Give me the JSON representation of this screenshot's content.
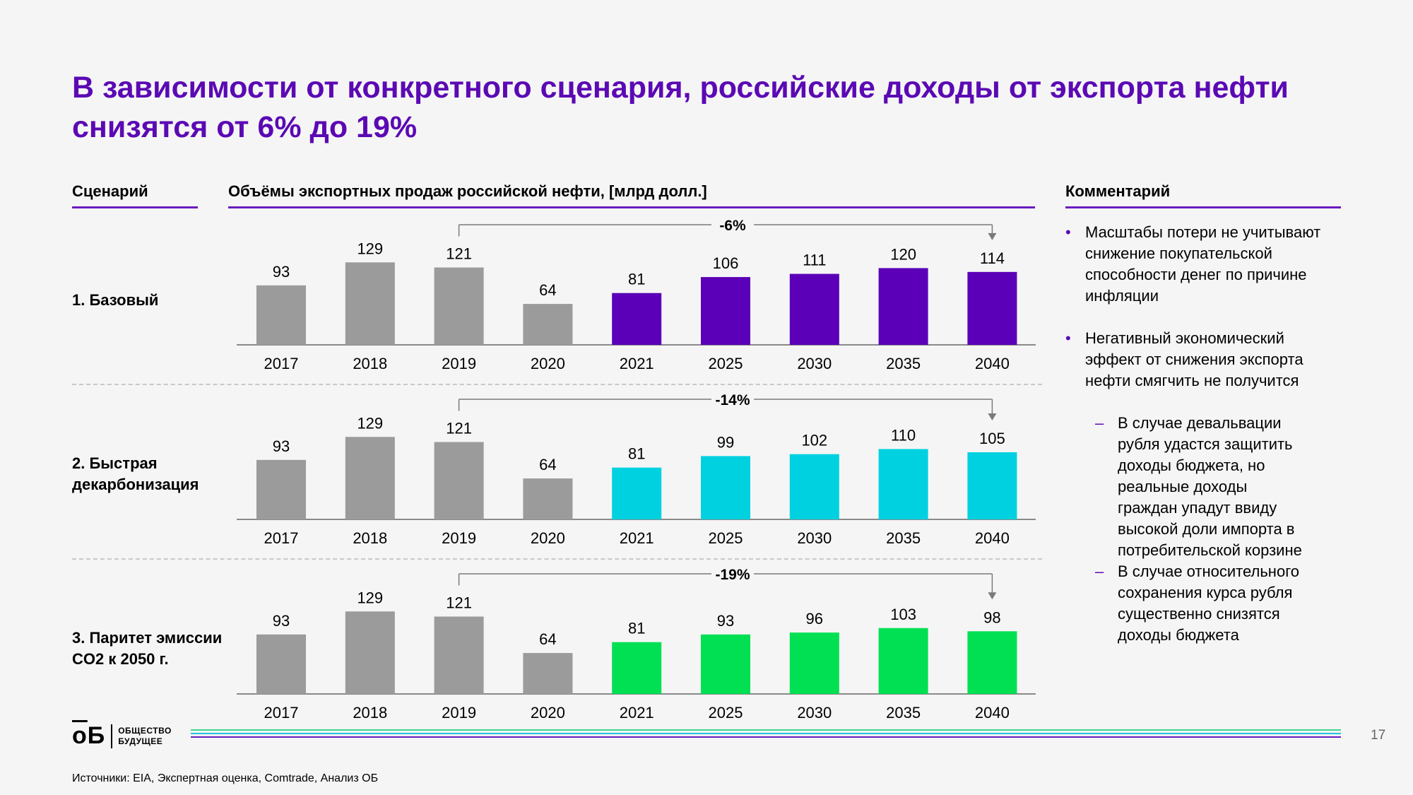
{
  "title_line1": "В зависимости от конкретного сценария, российские доходы от экспорта нефти",
  "title_line2": "снизятся от 6% до 19%",
  "headers": {
    "scenario": "Сценарий",
    "volumes": "Объёмы экспортных продаж российской нефти, [млрд долл.]",
    "comment": "Комментарий"
  },
  "scenarios": [
    {
      "line1": "1. Базовый",
      "line2": ""
    },
    {
      "line1": "2. Быстрая",
      "line2": "декарбонизация"
    },
    {
      "line1": "3. Паритет эмиссии",
      "line2": "CO2 к 2050 г."
    }
  ],
  "comments": {
    "b1": [
      "Масштабы потери не учитывают",
      "снижение покупательской",
      "способности денег по причине",
      "инфляции"
    ],
    "b2": [
      "Негативный экономический",
      "эффект от снижения экспорта",
      "нефти смягчить не получится"
    ],
    "s1": [
      "В случае девальвации",
      "рубля удастся защитить",
      "доходы бюджета, но",
      "реальные доходы",
      "граждан упадут ввиду",
      "высокой доли импорта в",
      "потребительской корзине"
    ],
    "s2": [
      "В случае относительного",
      "сохранения курса рубля",
      "существенно снизятся",
      "доходы бюджета"
    ],
    "bullet_symbol": "•",
    "dash_symbol": "–"
  },
  "logo": {
    "mark_o": "о",
    "mark_b": "Б",
    "line1": "ОБЩЕСТВО",
    "line2": "БУДУЩЕЕ"
  },
  "page_number": "17",
  "sources": "Источники: EIA, Экспертная оценка, Comtrade, Анализ ОБ",
  "colors": {
    "title": "#5b09b4",
    "history": "#9b9b9b",
    "base": "#5b00b8",
    "fast": "#00d1e0",
    "parity": "#00e052",
    "stripes": [
      "#3dd68c",
      "#1fc4e0",
      "#6a1bbf"
    ]
  },
  "chart_data": [
    {
      "type": "bar",
      "scenario": "1. Базовый",
      "categories": [
        "2017",
        "2018",
        "2019",
        "2020",
        "2021",
        "2025",
        "2030",
        "2035",
        "2040"
      ],
      "values": [
        93,
        129,
        121,
        64,
        81,
        106,
        111,
        120,
        114
      ],
      "historical_count": 4,
      "change_label": "-6%",
      "change_from": "2019",
      "change_to": "2040",
      "ylabel": "млрд долл."
    },
    {
      "type": "bar",
      "scenario": "2. Быстрая декарбонизация",
      "categories": [
        "2017",
        "2018",
        "2019",
        "2020",
        "2021",
        "2025",
        "2030",
        "2035",
        "2040"
      ],
      "values": [
        93,
        129,
        121,
        64,
        81,
        99,
        102,
        110,
        105
      ],
      "historical_count": 4,
      "change_label": "-14%",
      "change_from": "2019",
      "change_to": "2040",
      "ylabel": "млрд долл."
    },
    {
      "type": "bar",
      "scenario": "3. Паритет эмиссии CO2 к 2050 г.",
      "categories": [
        "2017",
        "2018",
        "2019",
        "2020",
        "2021",
        "2025",
        "2030",
        "2035",
        "2040"
      ],
      "values": [
        93,
        129,
        121,
        64,
        81,
        93,
        96,
        103,
        98
      ],
      "historical_count": 4,
      "change_label": "-19%",
      "change_from": "2019",
      "change_to": "2040",
      "ylabel": "млрд долл."
    }
  ]
}
